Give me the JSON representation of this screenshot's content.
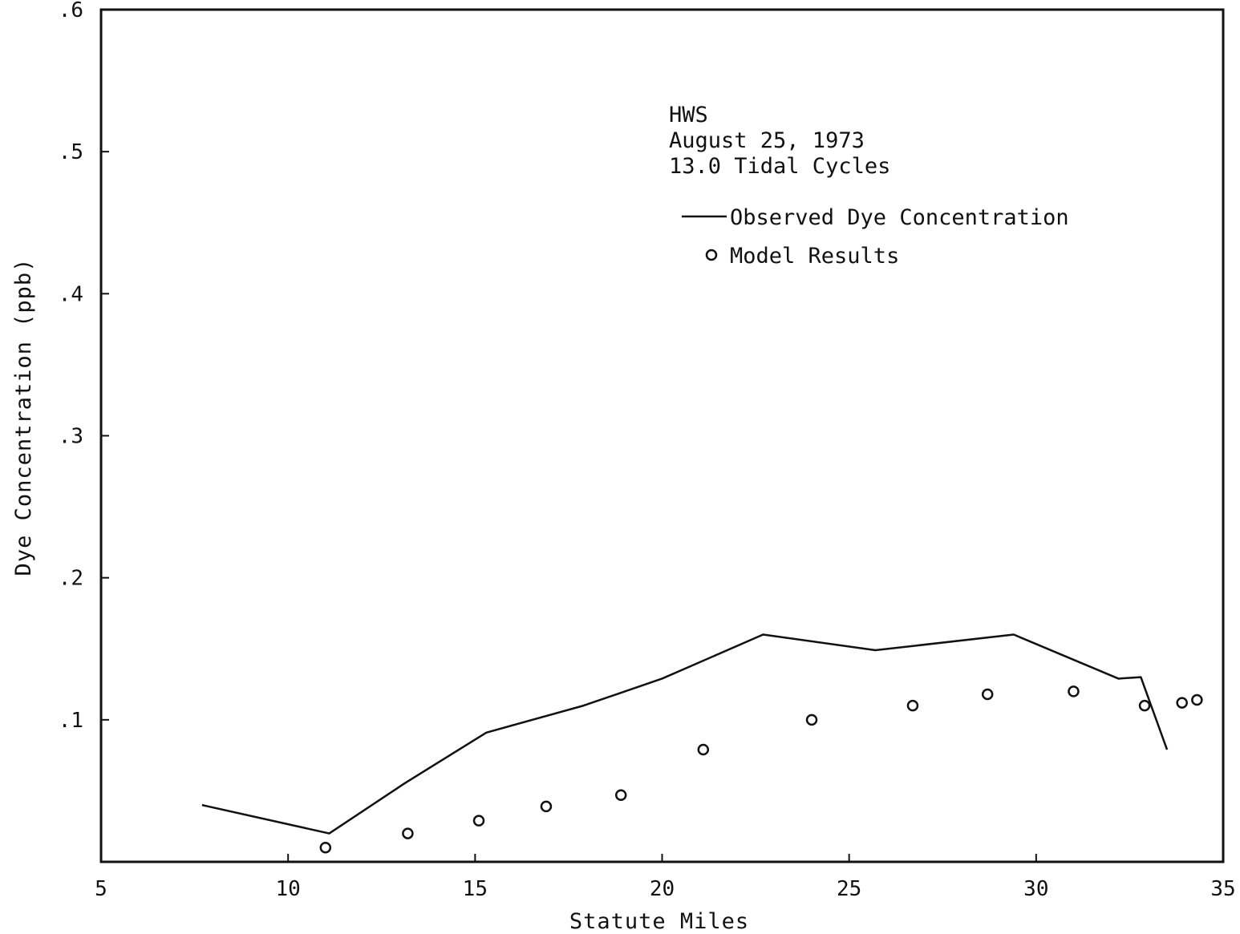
{
  "chart_data": {
    "type": "line",
    "title": "",
    "xlabel": "Statute Miles",
    "ylabel": "Dye Concentration (ppb)",
    "xlim": [
      5,
      35
    ],
    "ylim": [
      0,
      0.6
    ],
    "x_ticks": [
      5,
      10,
      15,
      20,
      25,
      30,
      35
    ],
    "x_tick_labels": [
      "5",
      "10",
      "15",
      "20",
      "25",
      "30",
      "35"
    ],
    "y_ticks": [
      0.1,
      0.2,
      0.3,
      0.4,
      0.5,
      0.6
    ],
    "y_tick_labels": [
      ".1",
      ".2",
      ".3",
      ".4",
      ".5",
      ".6"
    ],
    "grid": false,
    "legend_position": "top-right",
    "annotation_lines": [
      "HWS",
      "August 25, 1973",
      "13.0 Tidal Cycles"
    ],
    "series": [
      {
        "name": "Observed Dye Concentration",
        "kind": "line",
        "color": "#111111",
        "x": [
          7.7,
          11.1,
          13.1,
          15.3,
          17.9,
          20.0,
          22.7,
          25.7,
          29.4,
          32.2,
          32.8,
          33.5
        ],
        "y": [
          0.04,
          0.02,
          0.055,
          0.091,
          0.11,
          0.129,
          0.16,
          0.149,
          0.16,
          0.129,
          0.13,
          0.079
        ]
      },
      {
        "name": "Model Results",
        "kind": "marker",
        "color": "#111111",
        "x": [
          11.0,
          13.2,
          15.1,
          16.9,
          18.9,
          21.1,
          24.0,
          26.7,
          28.7,
          31.0,
          32.9,
          33.9,
          34.3
        ],
        "y": [
          0.01,
          0.02,
          0.029,
          0.039,
          0.047,
          0.079,
          0.1,
          0.11,
          0.118,
          0.12,
          0.11,
          0.112,
          0.114
        ]
      }
    ]
  }
}
